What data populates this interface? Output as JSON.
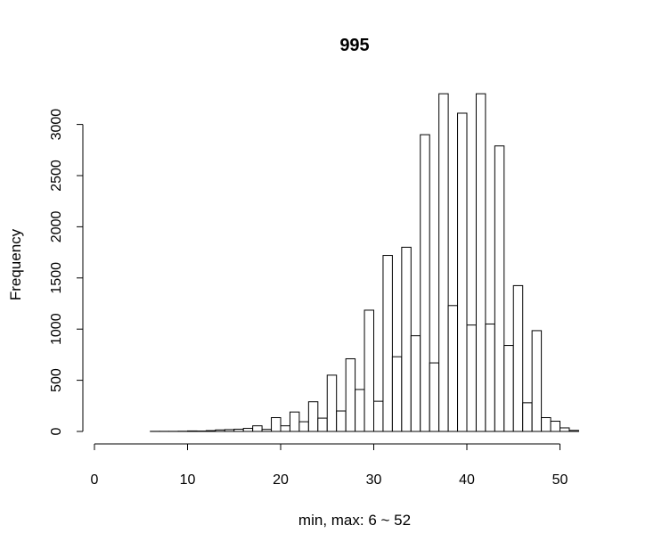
{
  "chart_data": {
    "type": "bar",
    "title": "995",
    "xlabel": "min, max:  6  ~  52",
    "ylabel": "Frequency",
    "xlim": [
      0,
      55
    ],
    "ylim": [
      0,
      3300
    ],
    "x_ticks": [
      0,
      10,
      20,
      30,
      40,
      50
    ],
    "y_ticks": [
      0,
      500,
      1000,
      1500,
      2000,
      2500,
      3000
    ],
    "x_tick_labels": [
      "0",
      "10",
      "20",
      "30",
      "40",
      "50"
    ],
    "y_tick_labels": [
      "0",
      "500",
      "1000",
      "1500",
      "2000",
      "2500",
      "3000"
    ],
    "bin_width": 1,
    "bin_starts": [
      6,
      7,
      8,
      9,
      10,
      11,
      12,
      13,
      14,
      15,
      16,
      17,
      18,
      19,
      20,
      21,
      22,
      23,
      24,
      25,
      26,
      27,
      28,
      29,
      30,
      31,
      32,
      33,
      34,
      35,
      36,
      37,
      38,
      39,
      40,
      41,
      42,
      43,
      44,
      45,
      46,
      47,
      48,
      49,
      50,
      51
    ],
    "values": [
      1,
      1,
      1,
      2,
      5,
      4,
      8,
      15,
      18,
      22,
      30,
      55,
      20,
      135,
      55,
      190,
      95,
      290,
      130,
      550,
      200,
      710,
      410,
      1185,
      295,
      1720,
      730,
      1800,
      935,
      2900,
      670,
      3300,
      1230,
      3110,
      1040,
      3300,
      1050,
      2790,
      840,
      1425,
      280,
      985,
      135,
      100,
      35,
      10
    ]
  }
}
